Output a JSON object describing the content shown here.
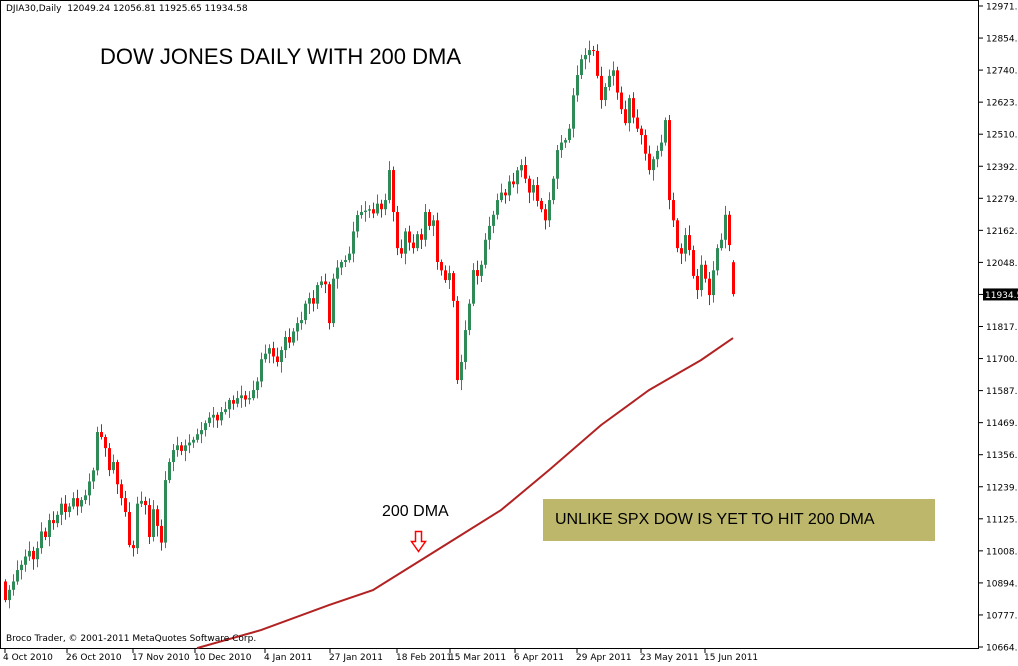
{
  "header": {
    "symbol": "DJIA30,Daily",
    "ohlc": "12049.24 12056.81 11925.65 11934.58"
  },
  "credit": "Broco Trader, © 2001-2011 MetaQuotes Software Corp.",
  "annotations": {
    "title": "DOW JONES DAILY WITH 200 DMA",
    "dma_label": "200 DMA",
    "note": "UNLIKE SPX DOW IS YET TO HIT 200 DMA",
    "arrow_icon": "down-arrow-icon",
    "note_bg": "#bdb76b"
  },
  "chart_data": {
    "type": "candlestick",
    "ylim": [
      10664.1,
      12971.6
    ],
    "y_ticks": [
      "12971.6",
      "12854.4",
      "12740.8",
      "12623.7",
      "12510.1",
      "12392.9",
      "12279.3",
      "12162.2",
      "12048.6",
      "11934.5",
      "11817.8",
      "11700.7",
      "11587.1",
      "11469.9",
      "11356.3",
      "11239.2",
      "11125.6",
      "11008.4",
      "10894.8",
      "10777.7",
      "10664.1"
    ],
    "current_price": "11934.5",
    "x_ticks": [
      "4 Oct 2010",
      "26 Oct 2010",
      "17 Nov 2010",
      "10 Dec 2010",
      "4 Jan 2011",
      "27 Jan 2011",
      "18 Feb 2011",
      "15 Mar 2011",
      "6 Apr 2011",
      "29 Apr 2011",
      "23 May 2011",
      "15 Jun 2011"
    ],
    "colors": {
      "up": "#2e8b57",
      "down": "#ff0000",
      "ma": "#b22222"
    },
    "last_bar": {
      "open": 12049.24,
      "high": 12056.81,
      "low": 11925.65,
      "close": 11934.58
    },
    "first_open": 10900,
    "closes": [
      10833,
      10870,
      10900,
      10941,
      10960,
      10990,
      11010,
      10980,
      11020,
      11080,
      11060,
      11121,
      11110,
      11140,
      11180,
      11150,
      11170,
      11200,
      11170,
      11193,
      11210,
      11260,
      11300,
      11438,
      11420,
      11380,
      11301,
      11330,
      11250,
      11200,
      11150,
      11031,
      11020,
      11180,
      11190,
      11175,
      11060,
      11160,
      11100,
      11040,
      11265,
      11330,
      11373,
      11390,
      11370,
      11390,
      11400,
      11410,
      11430,
      11445,
      11470,
      11490,
      11500,
      11480,
      11510,
      11520,
      11553,
      11540,
      11560,
      11570,
      11555,
      11560,
      11589,
      11620,
      11700,
      11720,
      11740,
      11710,
      11690,
      11733,
      11780,
      11760,
      11800,
      11830,
      11841,
      11900,
      11920,
      11900,
      11967,
      11980,
      11970,
      11830,
      11990,
      12030,
      12050,
      12057,
      12080,
      12160,
      12219,
      12230,
      12235,
      12240,
      12225,
      12260,
      12240,
      12273,
      12381,
      12230,
      12100,
      12080,
      12160,
      12120,
      12100,
      12150,
      12130,
      12230,
      12180,
      12200,
      12050,
      12020,
      11985,
      12010,
      11910,
      11625,
      11690,
      11805,
      11900,
      12021,
      12000,
      12040,
      12130,
      12180,
      12220,
      12273,
      12300,
      12290,
      12340,
      12330,
      12380,
      12399,
      12350,
      12300,
      12327,
      12270,
      12240,
      12200,
      12273,
      12350,
      12453,
      12480,
      12489,
      12530,
      12650,
      12723,
      12780,
      12795,
      12813,
      12810,
      12720,
      12633,
      12680,
      12720,
      12740,
      12660,
      12600,
      12550,
      12640,
      12570,
      12530,
      12507,
      12440,
      12381,
      12420,
      12450,
      12480,
      12561,
      12273,
      12200,
      12100,
      12080,
      12147,
      12093,
      12000,
      11949,
      12040,
      11990,
      11931,
      12020,
      12100,
      12130,
      12220,
      12111,
      11934.58
    ],
    "ma_200": {
      "name": "200 DMA",
      "bar_index": [
        48,
        64,
        81,
        92,
        104,
        112,
        124,
        136,
        149,
        161,
        174,
        182
      ],
      "values": [
        10660,
        10725,
        10815,
        10869,
        10977,
        11049,
        11157,
        11301,
        11463,
        11589,
        11697,
        11776
      ]
    }
  }
}
